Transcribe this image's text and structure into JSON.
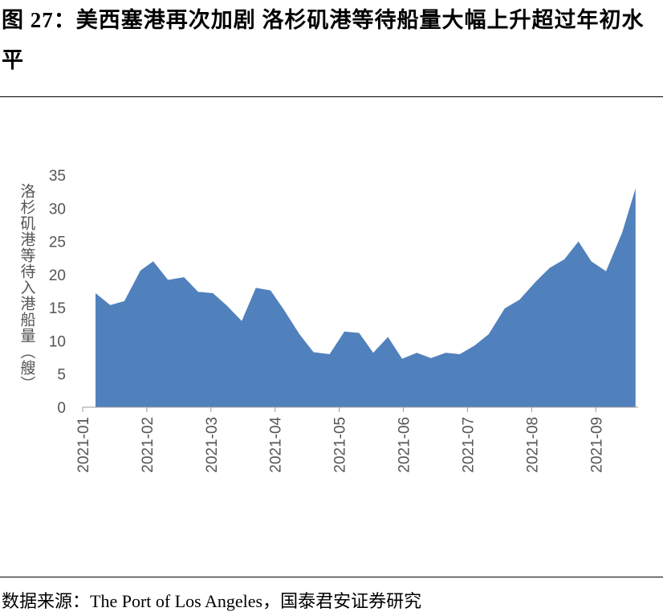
{
  "chart_data": {
    "type": "area",
    "title": "图 27：美西塞港再次加剧 洛杉矶港等待船量大幅上升超过年初水平",
    "ylabel": "洛杉矶港等待入港船量（艘）",
    "source": "数据来源：The Port of Los Angeles，国泰君安证券研究",
    "x": [
      1.2,
      1.43,
      1.65,
      1.9,
      2.1,
      2.33,
      2.58,
      2.8,
      3.03,
      3.25,
      3.48,
      3.7,
      3.93,
      4.13,
      4.38,
      4.6,
      4.85,
      5.08,
      5.31,
      5.53,
      5.76,
      5.98,
      6.21,
      6.43,
      6.66,
      6.88,
      7.11,
      7.33,
      7.58,
      7.81,
      8.06,
      8.28,
      8.51,
      8.73,
      8.93,
      9.16,
      9.41,
      9.62
    ],
    "values": [
      17.2,
      15.4,
      16,
      20.6,
      22,
      19.2,
      19.6,
      17.4,
      17.2,
      15.3,
      13,
      18,
      17.6,
      14.8,
      11,
      8.3,
      8,
      11.4,
      11.2,
      8.2,
      10.6,
      7.3,
      8.2,
      7.4,
      8.2,
      8,
      9.3,
      11,
      14.9,
      16.2,
      18.9,
      21,
      22.3,
      25,
      22,
      20.5,
      26.3,
      33
    ],
    "color": "#5081bd",
    "xlim": [
      1,
      9.66
    ],
    "xticks": [
      {
        "value": 1,
        "label": "2021-01"
      },
      {
        "value": 2,
        "label": "2021-02"
      },
      {
        "value": 3,
        "label": "2021-03"
      },
      {
        "value": 4,
        "label": "2021-04"
      },
      {
        "value": 5,
        "label": "2021-05"
      },
      {
        "value": 6,
        "label": "2021-06"
      },
      {
        "value": 7,
        "label": "2021-07"
      },
      {
        "value": 8,
        "label": "2021-08"
      },
      {
        "value": 9,
        "label": "2021-09"
      }
    ],
    "ylim": [
      0,
      35
    ],
    "yticks": [
      0,
      5,
      10,
      15,
      20,
      25,
      30,
      35
    ]
  }
}
